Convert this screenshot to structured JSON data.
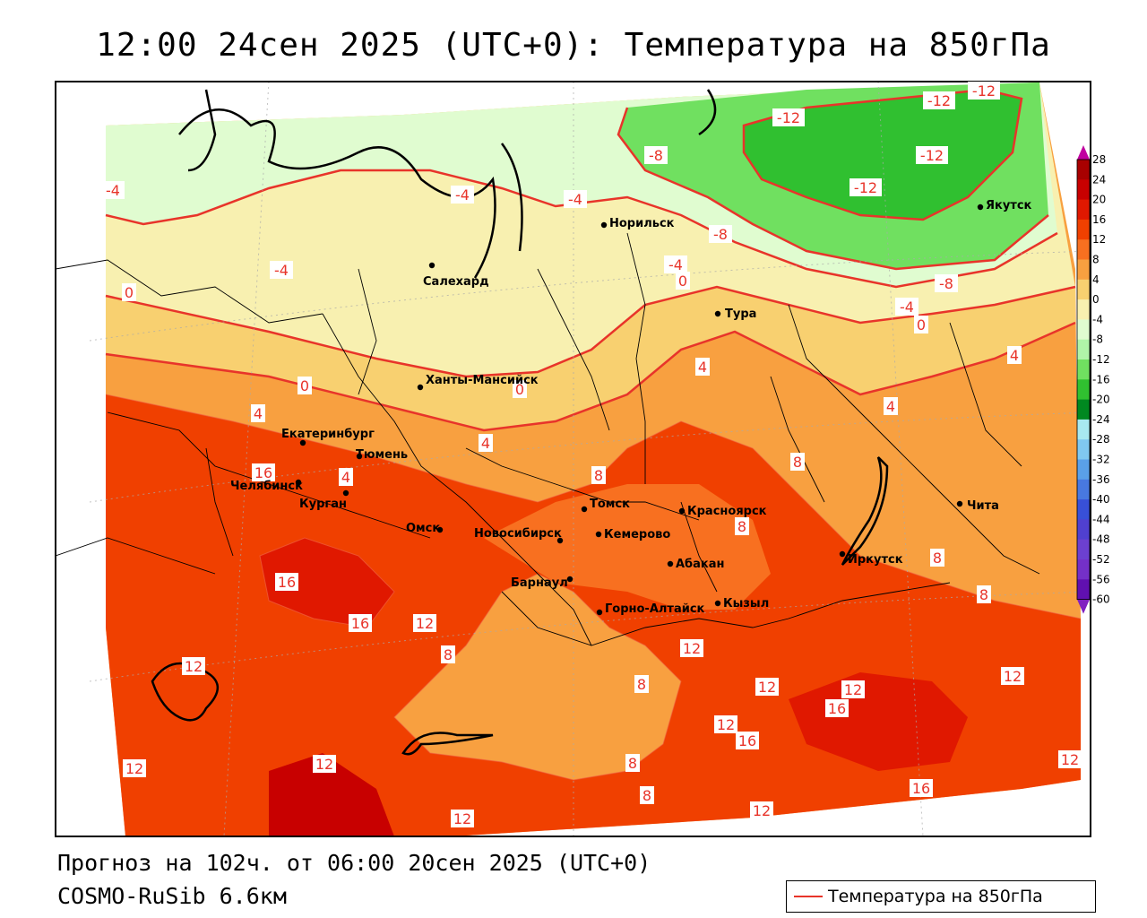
{
  "header": {
    "title": "12:00 24сен 2025 (UTC+0): Температура на 850гПа"
  },
  "footer": {
    "forecast": "Прогноз на 102ч. от 06:00 20сен 2025 (UTC+0)",
    "model": "COSMO-RuSib 6.6км"
  },
  "legend": {
    "label": "Температура на 850гПа",
    "color": "#e8342a"
  },
  "colorbar": {
    "ticks": [
      "28",
      "24",
      "20",
      "16",
      "12",
      "8",
      "4",
      "0",
      "-4",
      "-8",
      "-12",
      "-16",
      "-20",
      "-24",
      "-28",
      "-32",
      "-36",
      "-40",
      "-44",
      "-48",
      "-52",
      "-56",
      "-60"
    ],
    "colors": [
      "#a80000",
      "#c80000",
      "#e01800",
      "#f04000",
      "#f87020",
      "#f8a040",
      "#f8d070",
      "#f8f0b0",
      "#e0fcd0",
      "#b0f4a8",
      "#70e060",
      "#30c030",
      "#008820",
      "#a8e8f0",
      "#80c8f0",
      "#5aa0e8",
      "#4878e0",
      "#3850d8",
      "#5040d0",
      "#6c40d0",
      "#7430c8",
      "#6010b0"
    ]
  },
  "cities": [
    {
      "name": "Норильск"
    },
    {
      "name": "Якутск"
    },
    {
      "name": "Салехард"
    },
    {
      "name": "Тура"
    },
    {
      "name": "Ханты-Мансийск"
    },
    {
      "name": "Екатеринбург"
    },
    {
      "name": "Тюмень"
    },
    {
      "name": "Челябинск"
    },
    {
      "name": "Курган"
    },
    {
      "name": "Омск"
    },
    {
      "name": "Новосибирск"
    },
    {
      "name": "Томск"
    },
    {
      "name": "Кемерово"
    },
    {
      "name": "Красноярск"
    },
    {
      "name": "Абакан"
    },
    {
      "name": "Барнаул"
    },
    {
      "name": "Горно-Алтайск"
    },
    {
      "name": "Кызыл"
    },
    {
      "name": "Иркутск"
    },
    {
      "name": "Чита"
    }
  ],
  "isotherm_labels": [
    "-12",
    "-12",
    "-12",
    "-12",
    "-12",
    "-8",
    "-8",
    "-8",
    "-4",
    "-4",
    "-4",
    "-4",
    "-4",
    "-4",
    "0",
    "0",
    "0",
    "0",
    "0",
    "4",
    "4",
    "4",
    "4",
    "4",
    "4",
    "8",
    "8",
    "8",
    "8",
    "8",
    "8",
    "8",
    "8",
    "8",
    "12",
    "12",
    "12",
    "12",
    "12",
    "12",
    "12",
    "12",
    "12",
    "12",
    "12",
    "12",
    "16",
    "16",
    "16",
    "16",
    "16",
    "16"
  ]
}
